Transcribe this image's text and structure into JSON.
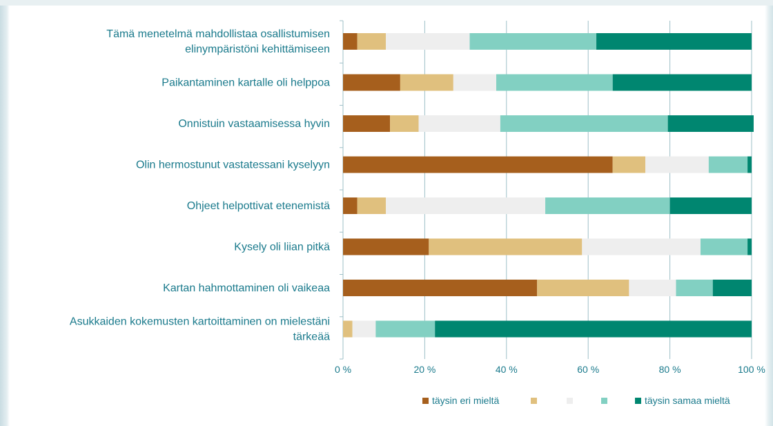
{
  "chart_data": {
    "type": "bar",
    "orientation": "horizontal",
    "stacked": "percent",
    "categories": [
      [
        "Tämä menetelmä mahdollistaa osallistumisen",
        "elinympäristöni kehittämiseen"
      ],
      [
        "Paikantaminen kartalle oli helppoa"
      ],
      [
        "Onnistuin vastaamisessa hyvin"
      ],
      [
        "Olin hermostunut vastatessani kyselyyn"
      ],
      [
        "Ohjeet helpottivat etenemistä"
      ],
      [
        "Kysely oli liian pitkä"
      ],
      [
        "Kartan hahmottaminen oli vaikeaa"
      ],
      [
        "Asukkaiden kokemusten kartoittaminen on mielestäni",
        "tärkeää"
      ]
    ],
    "series": [
      {
        "name": "täysin eri mieltä",
        "color": "#a65f1d",
        "values": [
          3.5,
          14,
          11.5,
          66,
          3.5,
          21,
          47.5,
          0
        ]
      },
      {
        "name": "",
        "color": "#e0c07e",
        "values": [
          7,
          13,
          7,
          8,
          7,
          37.5,
          22.5,
          2.3
        ]
      },
      {
        "name": "",
        "color": "#eeeeee",
        "values": [
          20.5,
          10.5,
          20,
          15.5,
          39,
          29,
          11.5,
          5.7
        ]
      },
      {
        "name": "",
        "color": "#82d0c2",
        "values": [
          31,
          28.5,
          41,
          9.5,
          30.5,
          11.5,
          9,
          14.5
        ]
      },
      {
        "name": "täysin samaa mieltä",
        "color": "#008670",
        "values": [
          38,
          34,
          21,
          1,
          20,
          1,
          9.5,
          77.5
        ]
      }
    ],
    "xlim": [
      0,
      100
    ],
    "xticks": [
      "0 %",
      "20 %",
      "40 %",
      "60 %",
      "80 %",
      "100 %"
    ],
    "legend_position": "bottom",
    "grid": "vertical",
    "colors": {
      "grid": "#9dbfc7",
      "text": "#1a7a8c"
    }
  }
}
